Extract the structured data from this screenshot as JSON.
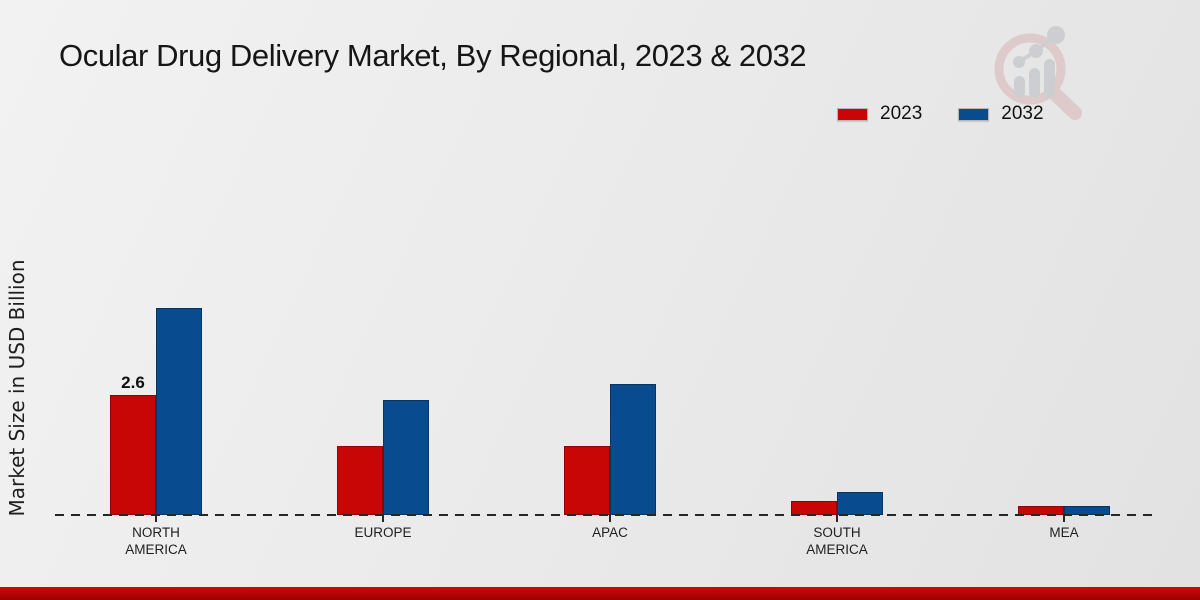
{
  "title": "Ocular Drug Delivery Market, By Regional, 2023 & 2032",
  "y_axis_label": "Market Size in USD Billion",
  "legend": {
    "position": "top-right",
    "items": [
      {
        "label": "2023",
        "color": "#c80606"
      },
      {
        "label": "2032",
        "color": "#084b8f"
      }
    ]
  },
  "chart_data": {
    "type": "bar",
    "title": "Ocular Drug Delivery Market, By Regional, 2023 & 2032",
    "ylabel": "Market Size in USD Billion",
    "xlabel": "",
    "categories": [
      "NORTH AMERICA",
      "EUROPE",
      "APAC",
      "SOUTH AMERICA",
      "MEA"
    ],
    "series": [
      {
        "name": "2023",
        "color": "#c80606",
        "border_color": "#930202",
        "values": [
          2.6,
          1.5,
          1.5,
          0.3,
          0.2
        ]
      },
      {
        "name": "2032",
        "color": "#084b8f",
        "border_color": "#063463",
        "values": [
          4.5,
          2.5,
          2.85,
          0.5,
          0.2
        ]
      }
    ],
    "data_labels": [
      {
        "category": "NORTH AMERICA",
        "series": "2023",
        "text": "2.6"
      }
    ],
    "ylim": [
      0,
      5
    ],
    "grid": false,
    "y_axis_ticks_visible": false,
    "legend_position": "top-right",
    "x_axis_style": "dashed-zero-line"
  },
  "watermark_name": "magnifier-bar-chart-logo",
  "footer_band": {
    "color_top": "#cf0808",
    "color_bottom": "#9a0202"
  }
}
